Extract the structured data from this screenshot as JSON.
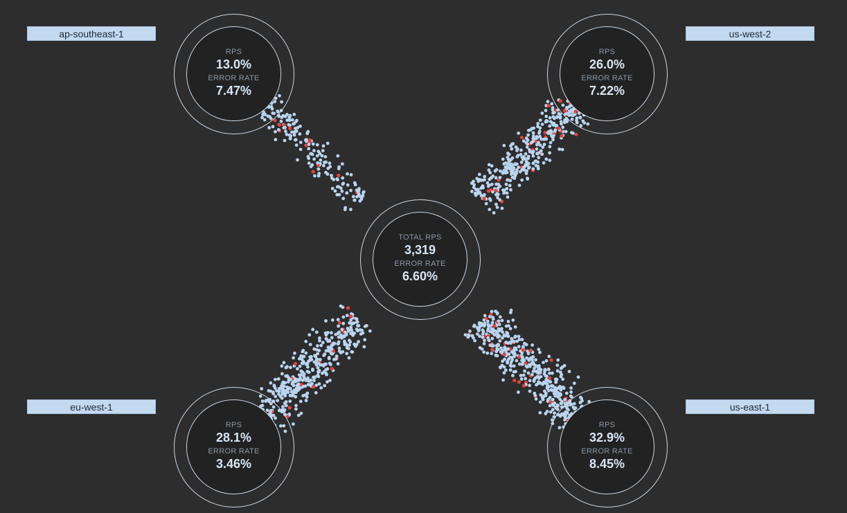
{
  "center": {
    "rps_label": "TOTAL RPS",
    "rps_value": "3,319",
    "error_label": "ERROR RATE",
    "error_value": "6.60%"
  },
  "regions": [
    {
      "name": "ap-southeast-1",
      "rps_label": "RPS",
      "rps_value": "13.0%",
      "error_label": "ERROR RATE",
      "error_value": "7.47%",
      "rps_share": 13.0,
      "error_rate": 7.47
    },
    {
      "name": "us-west-2",
      "rps_label": "RPS",
      "rps_value": "26.0%",
      "error_label": "ERROR RATE",
      "error_value": "7.22%",
      "rps_share": 26.0,
      "error_rate": 7.22
    },
    {
      "name": "eu-west-1",
      "rps_label": "RPS",
      "rps_value": "28.1%",
      "error_label": "ERROR RATE",
      "error_value": "3.46%",
      "rps_share": 28.1,
      "error_rate": 3.46
    },
    {
      "name": "us-east-1",
      "rps_label": "RPS",
      "rps_value": "32.9%",
      "error_label": "ERROR RATE",
      "error_value": "8.45%",
      "rps_share": 32.9,
      "error_rate": 8.45
    }
  ],
  "colors": {
    "background": "#2d2d2d",
    "request_dot": "#b9d4ee",
    "error_dot": "#e8413c",
    "ring": "#c9d8e8",
    "tag": "#c3d9f0"
  }
}
